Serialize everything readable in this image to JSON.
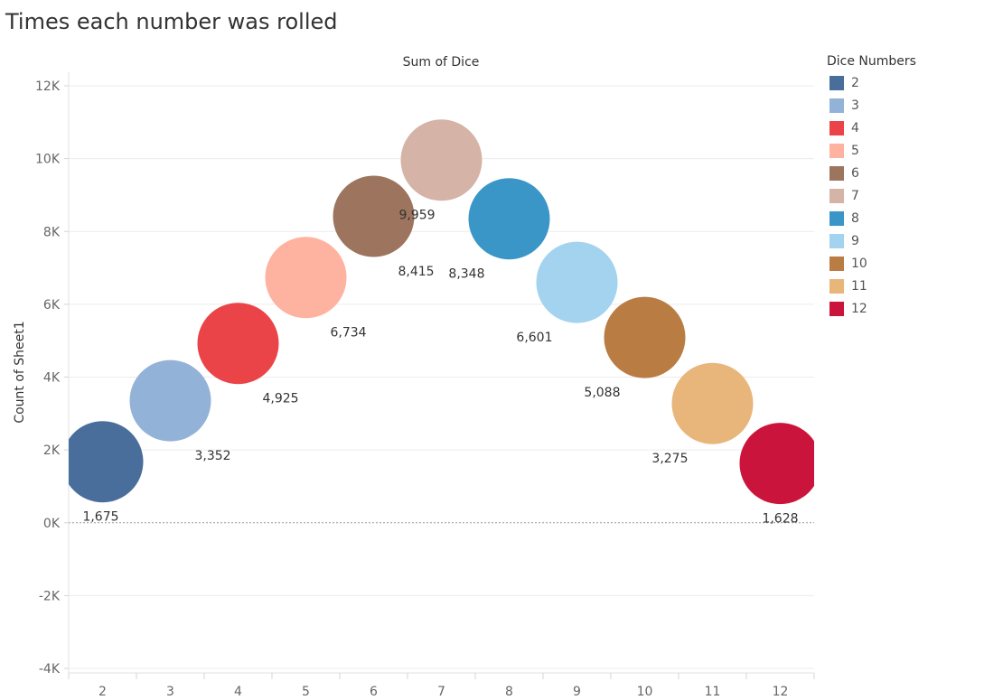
{
  "title": "Times each number was rolled",
  "legend": {
    "title": "Dice Numbers",
    "items": [
      {
        "label": "2",
        "color": "#4a6e9c"
      },
      {
        "label": "3",
        "color": "#93b2d8"
      },
      {
        "label": "4",
        "color": "#ea4449"
      },
      {
        "label": "5",
        "color": "#feb2a0"
      },
      {
        "label": "6",
        "color": "#9d755e"
      },
      {
        "label": "7",
        "color": "#d5b3a6"
      },
      {
        "label": "8",
        "color": "#3a96c6"
      },
      {
        "label": "9",
        "color": "#a3d3ee"
      },
      {
        "label": "10",
        "color": "#b97c43"
      },
      {
        "label": "11",
        "color": "#e8b67b"
      },
      {
        "label": "12",
        "color": "#cb143c"
      }
    ]
  },
  "chart_data": {
    "type": "scatter",
    "title": "Times each number was rolled",
    "xlabel": "Sum of Dice",
    "ylabel": "Count of Sheet1",
    "categories": [
      "2",
      "3",
      "4",
      "5",
      "6",
      "7",
      "8",
      "9",
      "10",
      "11",
      "12"
    ],
    "values": [
      1675,
      3352,
      4925,
      6734,
      8415,
      9959,
      8348,
      6601,
      5088,
      3275,
      1628
    ],
    "value_labels": [
      "1,675",
      "3,352",
      "4,925",
      "6,734",
      "8,415",
      "9,959",
      "8,348",
      "6,601",
      "5,088",
      "3,275",
      "1,628"
    ],
    "yticks": [
      12000,
      10000,
      8000,
      6000,
      4000,
      2000,
      0,
      -2000,
      -4000
    ],
    "ytick_labels": [
      "12K",
      "10K",
      "8K",
      "6K",
      "4K",
      "2K",
      "0K",
      "-2K",
      "-4K"
    ],
    "ylim": [
      -4000,
      12000
    ],
    "grid": true,
    "legend_position": "right",
    "colors": [
      "#4a6e9c",
      "#93b2d8",
      "#ea4449",
      "#feb2a0",
      "#9d755e",
      "#d5b3a6",
      "#3a96c6",
      "#a3d3ee",
      "#b97c43",
      "#e8b67b",
      "#cb143c"
    ]
  }
}
